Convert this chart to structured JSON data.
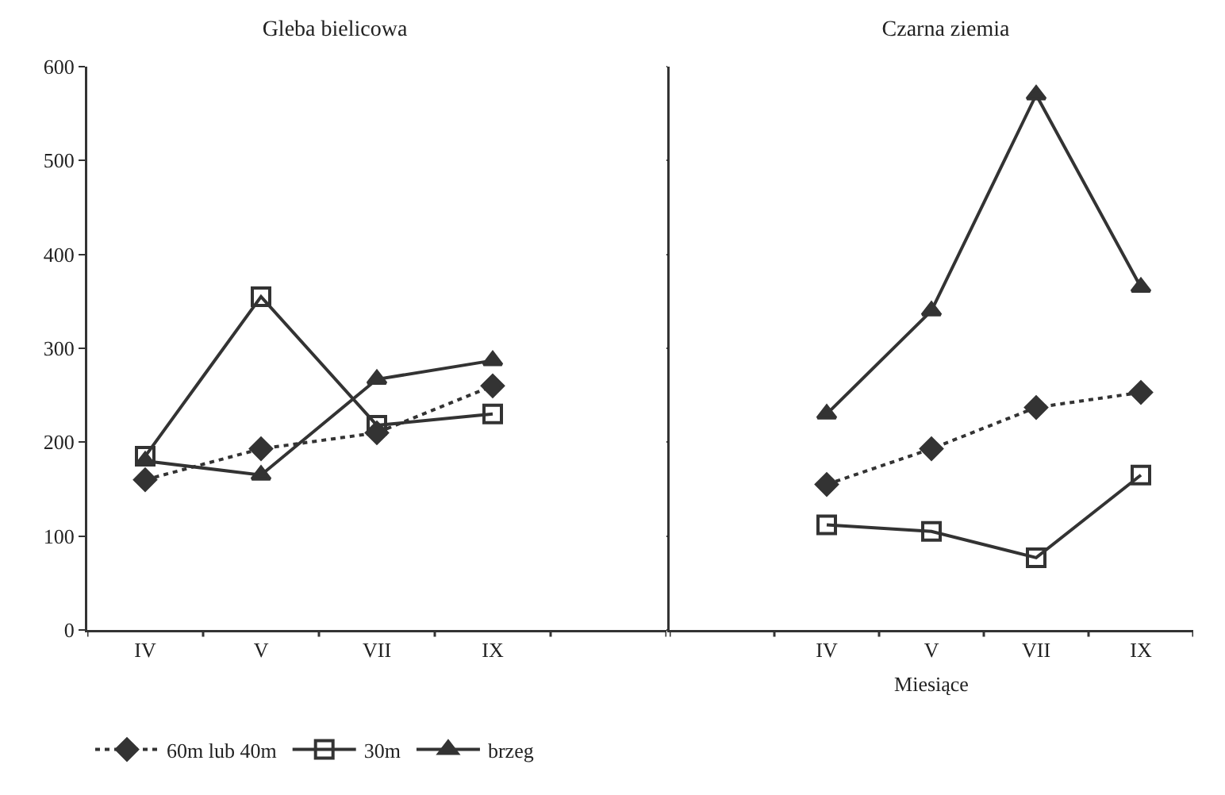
{
  "chart_data": [
    {
      "type": "line",
      "title": "Gleba bielicowa",
      "categories": [
        "IV",
        "V",
        "VII",
        "IX",
        null
      ],
      "ylim": [
        0,
        600
      ],
      "yticks": [
        0,
        100,
        200,
        300,
        400,
        500,
        600
      ],
      "grid": false,
      "legend": "bottom",
      "series": [
        {
          "name": "60m lub 40m",
          "color": "#333333",
          "marker": "diamond",
          "line_style": "dotted",
          "values": [
            160,
            193,
            210,
            260,
            null
          ]
        },
        {
          "name": "30m",
          "color": "#333333",
          "marker": "square",
          "line_style": "solid",
          "values": [
            185,
            355,
            218,
            230,
            null
          ]
        },
        {
          "name": "brzeg",
          "color": "#333333",
          "marker": "triangle",
          "line_style": "solid",
          "values": [
            180,
            165,
            267,
            287,
            null
          ]
        }
      ]
    },
    {
      "type": "line",
      "title": "Czarna ziemia",
      "xlabel": "Miesiące",
      "categories": [
        null,
        "IV",
        "V",
        "VII",
        "IX"
      ],
      "ylim": [
        0,
        600
      ],
      "yticks": [
        0,
        100,
        200,
        300,
        400,
        500,
        600
      ],
      "grid": false,
      "legend": false,
      "tick_labels": "x",
      "series": [
        {
          "color": "#333333",
          "marker": "diamond",
          "line_style": "dotted",
          "values": [
            null,
            155,
            193,
            237,
            253
          ]
        },
        {
          "color": "#333333",
          "marker": "square",
          "line_style": "solid",
          "values": [
            null,
            112,
            105,
            77,
            165
          ]
        },
        {
          "color": "#333333",
          "marker": "triangle",
          "line_style": "solid",
          "values": [
            null,
            230,
            340,
            570,
            365
          ]
        }
      ]
    }
  ]
}
